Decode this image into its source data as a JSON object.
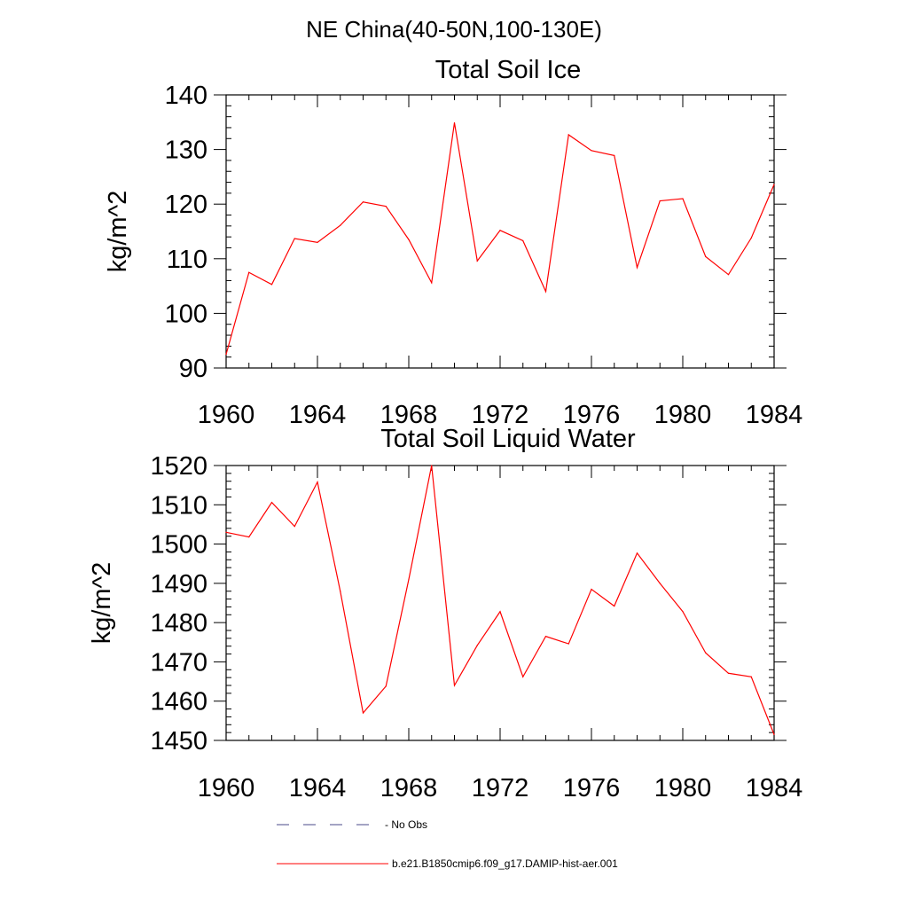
{
  "main_title": "NE China(40-50N,100-130E)",
  "colors": {
    "model": "#ff0000",
    "obs": "#4a4a8a",
    "axis": "#000000"
  },
  "chart_data": [
    {
      "type": "line",
      "title": "Total Soil Ice",
      "xlabel": "",
      "ylabel": "kg/m^2",
      "xlim": [
        1960,
        1984
      ],
      "ylim": [
        90,
        140
      ],
      "x_ticks": [
        1960,
        1964,
        1968,
        1972,
        1976,
        1980,
        1984
      ],
      "y_ticks": [
        90,
        100,
        110,
        120,
        130,
        140
      ],
      "x_minor_step": 1,
      "y_minor_step": 2,
      "grid": false,
      "x": [
        1960,
        1961,
        1962,
        1963,
        1964,
        1965,
        1966,
        1967,
        1968,
        1969,
        1970,
        1971,
        1972,
        1973,
        1974,
        1975,
        1976,
        1977,
        1978,
        1979,
        1980,
        1981,
        1982,
        1983,
        1984
      ],
      "series": [
        {
          "name": "b.e21.B1850cmip6.f09_g17.DAMIP-hist-aer.001",
          "values": [
            92.5,
            107.5,
            105.3,
            113.7,
            113.0,
            116.1,
            120.4,
            119.6,
            113.5,
            105.6,
            134.9,
            109.6,
            115.2,
            113.3,
            104.0,
            132.7,
            129.8,
            128.9,
            108.4,
            120.6,
            121.0,
            110.4,
            107.1,
            113.8,
            123.6
          ]
        }
      ]
    },
    {
      "type": "line",
      "title": "Total Soil Liquid Water",
      "xlabel": "",
      "ylabel": "kg/m^2",
      "xlim": [
        1960,
        1984
      ],
      "ylim": [
        1450,
        1520
      ],
      "x_ticks": [
        1960,
        1964,
        1968,
        1972,
        1976,
        1980,
        1984
      ],
      "y_ticks": [
        1450,
        1460,
        1470,
        1480,
        1490,
        1500,
        1510,
        1520
      ],
      "x_minor_step": 1,
      "y_minor_step": 2,
      "grid": false,
      "x": [
        1960,
        1961,
        1962,
        1963,
        1964,
        1965,
        1966,
        1967,
        1968,
        1969,
        1970,
        1971,
        1972,
        1973,
        1974,
        1975,
        1976,
        1977,
        1978,
        1979,
        1980,
        1981,
        1982,
        1983,
        1984
      ],
      "series": [
        {
          "name": "b.e21.B1850cmip6.f09_g17.DAMIP-hist-aer.001",
          "values": [
            1503.0,
            1501.8,
            1510.6,
            1504.5,
            1515.8,
            1488.0,
            1457.0,
            1463.8,
            1491.0,
            1520.0,
            1464.0,
            1474.2,
            1482.8,
            1466.2,
            1476.5,
            1474.6,
            1488.5,
            1484.2,
            1497.7,
            1490.0,
            1482.8,
            1472.3,
            1467.1,
            1466.2,
            1451.5
          ]
        }
      ]
    }
  ],
  "legend": {
    "placement": "bottom-center",
    "items": [
      {
        "label": "- No Obs",
        "style": "dashed"
      },
      {
        "label": "b.e21.B1850cmip6.f09_g17.DAMIP-hist-aer.001",
        "style": "solid"
      }
    ]
  }
}
